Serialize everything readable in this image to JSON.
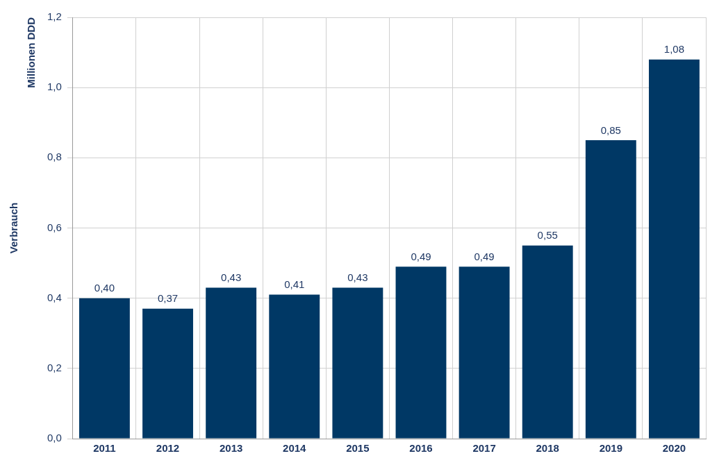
{
  "chart_data": {
    "type": "bar",
    "ylabel": "Verbrauch",
    "annotations": [
      "Millionen DDD"
    ],
    "categories": [
      "2011",
      "2012",
      "2013",
      "2014",
      "2015",
      "2016",
      "2017",
      "2018",
      "2019",
      "2020"
    ],
    "values": [
      0.4,
      0.37,
      0.43,
      0.41,
      0.43,
      0.49,
      0.49,
      0.55,
      0.85,
      1.08
    ],
    "value_labels": [
      "0,40",
      "0,37",
      "0,43",
      "0,41",
      "0,43",
      "0,49",
      "0,49",
      "0,55",
      "0,85",
      "1,08"
    ],
    "color": "#003865",
    "ylim": [
      0,
      1.2
    ],
    "yticks": [
      {
        "value": 0,
        "label": "0,0"
      },
      {
        "value": 0.2,
        "label": "0,2"
      },
      {
        "value": 0.4,
        "label": "0,4"
      },
      {
        "value": 0.6,
        "label": "0,6"
      },
      {
        "value": 0.8,
        "label": "0,8"
      },
      {
        "value": 1.0,
        "label": "1,0"
      },
      {
        "value": 1.2,
        "label": "1,2"
      }
    ],
    "grid": true
  }
}
